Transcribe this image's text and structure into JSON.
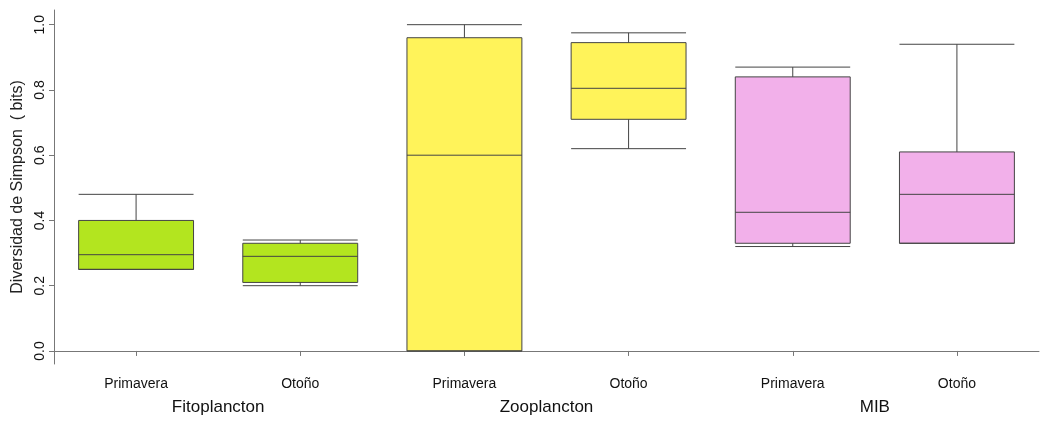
{
  "chart_data": {
    "type": "box",
    "ylabel": "Diversidad de Simpson  ( bits)",
    "categories": [
      "Primavera",
      "Otoño",
      "Primavera",
      "Otoño",
      "Primavera",
      "Otoño"
    ],
    "boxes": [
      {
        "low": 0.25,
        "q1": 0.25,
        "median": 0.295,
        "q3": 0.4,
        "high": 0.48
      },
      {
        "low": 0.2,
        "q1": 0.21,
        "median": 0.29,
        "q3": 0.33,
        "high": 0.34
      },
      {
        "low": 0.0,
        "q1": 0.0,
        "median": 0.6,
        "q3": 0.96,
        "high": 1.0
      },
      {
        "low": 0.62,
        "q1": 0.71,
        "median": 0.805,
        "q3": 0.945,
        "high": 0.975
      },
      {
        "low": 0.32,
        "q1": 0.33,
        "median": 0.425,
        "q3": 0.84,
        "high": 0.87
      },
      {
        "low": 0.33,
        "q1": 0.33,
        "median": 0.48,
        "q3": 0.61,
        "high": 0.94
      }
    ],
    "colors": [
      "#b3e51f",
      "#b3e51f",
      "#fff35a",
      "#fff35a",
      "#f2b0ea",
      "#f2b0ea"
    ],
    "ylim": [
      -0.04,
      1.045
    ],
    "yticks": [
      {
        "value": 0,
        "label": "0.0"
      },
      {
        "value": 0.2,
        "label": "0.2"
      },
      {
        "value": 0.4,
        "label": "0.4"
      },
      {
        "value": 0.6,
        "label": "0.6"
      },
      {
        "value": 0.8,
        "label": "0.8"
      },
      {
        "value": 1,
        "label": "1.0"
      }
    ],
    "grid": false,
    "annotations": [
      "Fitoplancton",
      "Zooplancton",
      "MIB"
    ]
  }
}
